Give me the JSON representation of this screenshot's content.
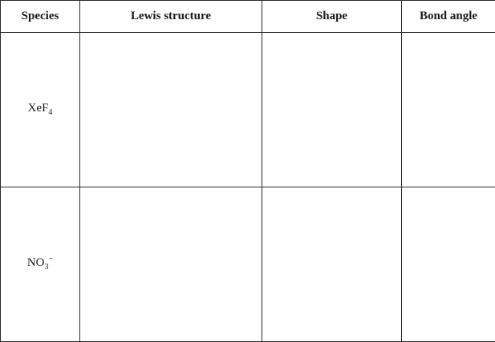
{
  "table": {
    "headers": [
      "Species",
      "Lewis structure",
      "Shape",
      "Bond angle"
    ],
    "rows": [
      {
        "species": {
          "base": "XeF",
          "sub": "4",
          "sup": ""
        },
        "lewis_structure": "",
        "shape": "",
        "bond_angle": ""
      },
      {
        "species": {
          "base": "NO",
          "sub": "3",
          "sup": "−"
        },
        "lewis_structure": "",
        "shape": "",
        "bond_angle": ""
      }
    ]
  }
}
